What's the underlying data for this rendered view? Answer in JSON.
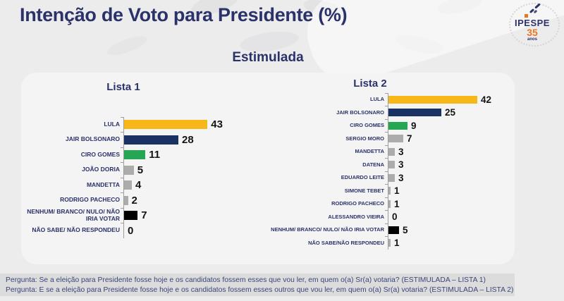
{
  "header": {
    "title": "Intenção de Voto para Presidente (%)",
    "logo": {
      "name": "IPESPE",
      "years": "35",
      "anos": "anos"
    }
  },
  "subtitle": "Estimulada",
  "colors": {
    "yellow": "#f8b718",
    "navy": "#1a3263",
    "green": "#25a653",
    "gray": "#acacac",
    "black": "#000000",
    "title_navy": "#2b3269",
    "accent_orange": "#e87722"
  },
  "chart_data": [
    {
      "type": "bar",
      "orientation": "horizontal",
      "title": "Lista 1",
      "categories": [
        "LULA",
        "JAIR BOLSONARO",
        "CIRO GOMES",
        "JOÃO DORIA",
        "MANDETTA",
        "RODRIGO PACHECO",
        "NENHUM/ BRANCO/ NULO/ NÃO IRIA VOTAR",
        "NÃO SABE/ NÃO RESPONDEU"
      ],
      "values": [
        43,
        28,
        11,
        5,
        4,
        2,
        7,
        0
      ],
      "bar_colors": [
        "yellow",
        "navy",
        "green",
        "gray",
        "gray",
        "gray",
        "black",
        "gray"
      ],
      "xlim": [
        0,
        50
      ],
      "grid": false,
      "value_labels": true
    },
    {
      "type": "bar",
      "orientation": "horizontal",
      "title": "Lista 2",
      "categories": [
        "LULA",
        "JAIR BOLSONARO",
        "CIRO GOMES",
        "SERGIO MORO",
        "MANDETTA",
        "DATENA",
        "EDUARDO LEITE",
        "SIMONE TEBET",
        "RODRIGO PACHECO",
        "ALESSANDRO VIEIRA",
        "NENHUM/ BRANCO/ NULO/ NÃO IRIA VOTAR",
        "NÃO SABE/NÃO RESPONDEU"
      ],
      "values": [
        42,
        25,
        9,
        7,
        3,
        3,
        3,
        1,
        1,
        0,
        5,
        1
      ],
      "bar_colors": [
        "yellow",
        "navy",
        "green",
        "gray",
        "gray",
        "gray",
        "gray",
        "gray",
        "gray",
        "gray",
        "black",
        "gray"
      ],
      "xlim": [
        0,
        50
      ],
      "grid": false,
      "value_labels": true
    }
  ],
  "footer": {
    "questions": [
      "Pergunta:  Se a eleição para Presidente fosse hoje e os candidatos fossem esses que vou ler, em quem o(a) Sr(a) votaria? (ESTIMULADA – LISTA 1)",
      "Pergunta:  E se a eleição para Presidente fosse hoje e os candidatos fossem esses outros que vou ler, em quem o(a) Sr(a) votaria?  (ESTIMULADA – LISTA 2)"
    ]
  }
}
